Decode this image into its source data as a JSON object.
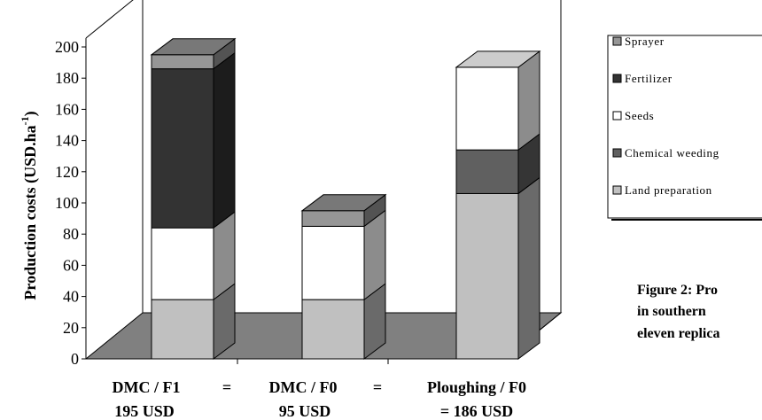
{
  "chart_data": {
    "type": "bar",
    "stacked": true,
    "three_d": true,
    "categories": [
      "DMC / F1",
      "DMC / F0",
      "Ploughing / F0"
    ],
    "category_totals": [
      "195 USD",
      "95 USD",
      "= 186 USD"
    ],
    "separator": "=",
    "ylabel": "Production costs (USD.ha",
    "ylabel_superscript": "-1",
    "ylabel_close": ")",
    "ylim": [
      0,
      200
    ],
    "yticks": [
      0,
      20,
      40,
      60,
      80,
      100,
      120,
      140,
      160,
      180,
      200
    ],
    "series": [
      {
        "name": "Land preparation",
        "color": "#c0c0c0",
        "values": [
          38,
          38,
          106
        ]
      },
      {
        "name": "Chemical weeding",
        "color": "#606060",
        "values": [
          0,
          0,
          28
        ]
      },
      {
        "name": "Seeds",
        "color": "#ffffff",
        "values": [
          46,
          47,
          53
        ]
      },
      {
        "name": "Fertilizer",
        "color": "#333333",
        "values": [
          102,
          0,
          0
        ]
      },
      {
        "name": "Sprayer",
        "color": "#969696",
        "values": [
          9,
          10,
          0
        ]
      }
    ],
    "legend_order": [
      "Sprayer",
      "Fertilizer",
      "Seeds",
      "Chemical weeding",
      "Land preparation"
    ],
    "legend_position": "right",
    "grid": false,
    "floor_color": "#808080"
  },
  "caption": {
    "line1": "Figure 2: Pro",
    "line2": "in southern",
    "line3": "eleven replica"
  }
}
